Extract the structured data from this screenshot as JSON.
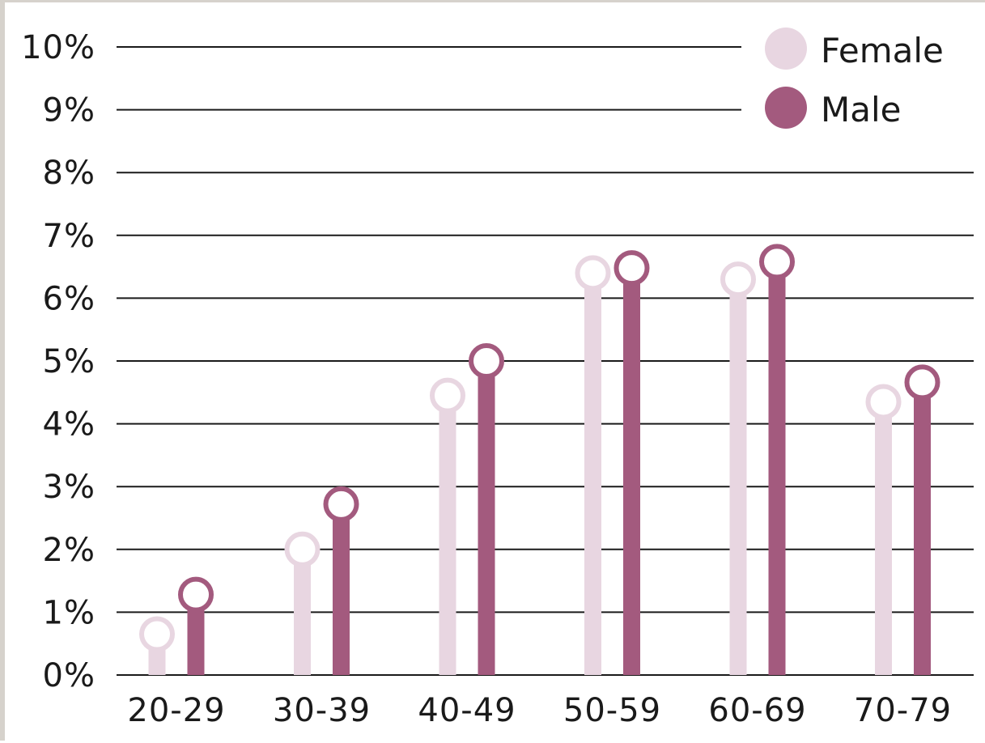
{
  "colors": {
    "female": "#e8d6e1",
    "male": "#a35a7e",
    "grid": "#1a1a1a",
    "text": "#1a1a1a"
  },
  "legend": {
    "placement": "top-right",
    "female_label": "Female",
    "male_label": "Male"
  },
  "chart_data": {
    "type": "bar",
    "style": "lollipop",
    "categories": [
      "20-29",
      "30-39",
      "40-49",
      "50-59",
      "60-69",
      "70-79"
    ],
    "series": [
      {
        "name": "Female",
        "values": [
          0.65,
          2.0,
          4.45,
          6.4,
          6.3,
          4.35
        ]
      },
      {
        "name": "Male",
        "values": [
          1.28,
          2.72,
          5.0,
          6.48,
          6.58,
          4.66
        ]
      }
    ],
    "ylim": [
      0,
      10
    ],
    "yticks": [
      "0%",
      "1%",
      "2%",
      "3%",
      "4%",
      "5%",
      "6%",
      "7%",
      "8%",
      "9%",
      "10%"
    ],
    "grid": true
  }
}
